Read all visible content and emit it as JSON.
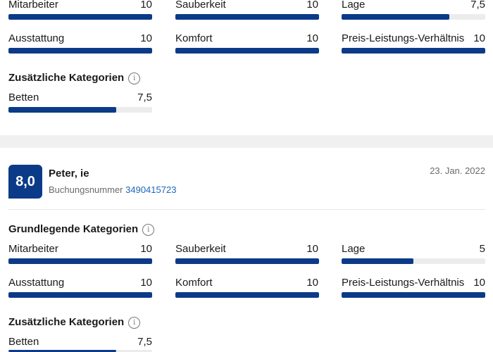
{
  "review1": {
    "basic_rows": [
      [
        {
          "label": "Mitarbeiter",
          "value": "10",
          "fraction": 1.0
        },
        {
          "label": "Sauberkeit",
          "value": "10",
          "fraction": 1.0
        },
        {
          "label": "Lage",
          "value": "7,5",
          "fraction": 0.75
        }
      ],
      [
        {
          "label": "Ausstattung",
          "value": "10",
          "fraction": 1.0
        },
        {
          "label": "Komfort",
          "value": "10",
          "fraction": 1.0
        },
        {
          "label": "Preis-Leistungs-Verhältnis",
          "value": "10",
          "fraction": 1.0
        }
      ]
    ],
    "extra_heading": "Zusätzliche Kategorien",
    "extra": [
      {
        "label": "Betten",
        "value": "7,5",
        "fraction": 0.75
      }
    ]
  },
  "review2": {
    "score": "8,0",
    "reviewer": "Peter, ie",
    "booking_label": "Buchungsnummer",
    "booking_number": "3490415723",
    "date": "23. Jan. 2022",
    "basic_heading": "Grundlegende Kategorien",
    "basic_rows": [
      [
        {
          "label": "Mitarbeiter",
          "value": "10",
          "fraction": 1.0
        },
        {
          "label": "Sauberkeit",
          "value": "10",
          "fraction": 1.0
        },
        {
          "label": "Lage",
          "value": "5",
          "fraction": 0.5
        }
      ],
      [
        {
          "label": "Ausstattung",
          "value": "10",
          "fraction": 1.0
        },
        {
          "label": "Komfort",
          "value": "10",
          "fraction": 1.0
        },
        {
          "label": "Preis-Leistungs-Verhältnis",
          "value": "10",
          "fraction": 1.0
        }
      ]
    ],
    "extra_heading": "Zusätzliche Kategorien",
    "extra": [
      {
        "label": "Betten",
        "value": "7,5",
        "fraction": 0.75
      }
    ]
  },
  "icons": {
    "info": "info-icon"
  },
  "colors": {
    "accent": "#0b3a88",
    "track": "#ececec",
    "link": "#1d67b8"
  }
}
